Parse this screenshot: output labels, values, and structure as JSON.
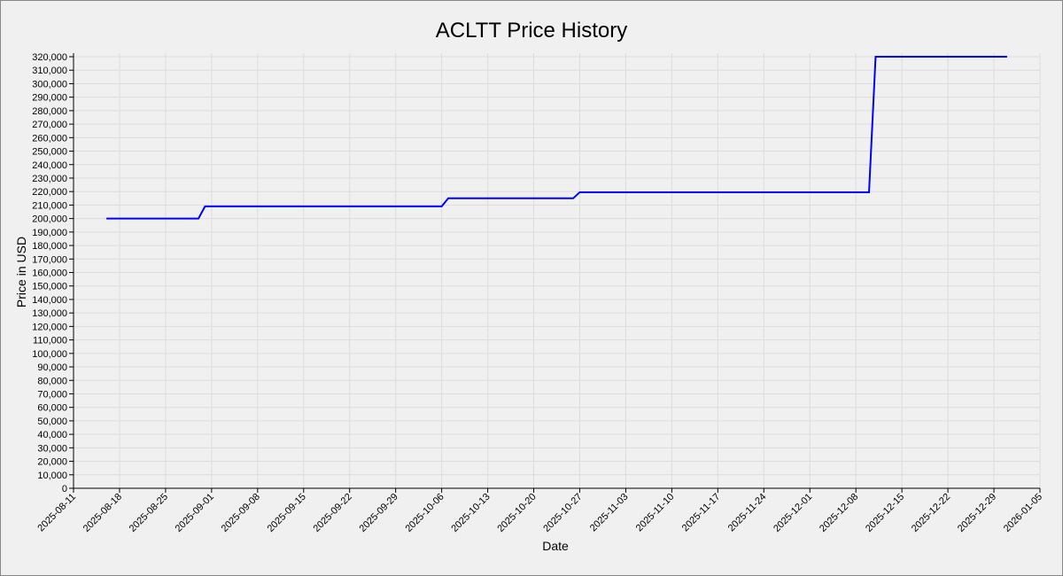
{
  "chart_data": {
    "type": "line",
    "title": "ACLTT Price History",
    "x_label": "Date",
    "y_label": "Price in USD",
    "x": [
      "2025-08-16",
      "2025-08-30",
      "2025-08-31",
      "2025-10-06",
      "2025-10-07",
      "2025-10-26",
      "2025-10-27",
      "2025-12-10",
      "2025-12-11",
      "2025-12-31"
    ],
    "values": [
      200000,
      200000,
      209000,
      209000,
      215000,
      215000,
      219500,
      219500,
      320000,
      320000
    ],
    "color": "#0000ff",
    "grid": true,
    "xlim": [
      "2025-08-11",
      "2026-01-05"
    ],
    "xticks": [
      "2025-08-11",
      "2025-08-18",
      "2025-08-25",
      "2025-09-01",
      "2025-09-08",
      "2025-09-15",
      "2025-09-22",
      "2025-09-29",
      "2025-10-06",
      "2025-10-13",
      "2025-10-20",
      "2025-10-27",
      "2025-11-03",
      "2025-11-10",
      "2025-11-17",
      "2025-11-24",
      "2025-12-01",
      "2025-12-08",
      "2025-12-15",
      "2025-12-22",
      "2025-12-29",
      "2026-01-05"
    ],
    "ylim": [
      0,
      320000
    ],
    "yticks": [
      0,
      {
        "value": 10000,
        "label": "10,000"
      },
      {
        "value": 20000,
        "label": "20,000"
      },
      {
        "value": 30000,
        "label": "30,000"
      },
      {
        "value": 40000,
        "label": "40,000"
      },
      {
        "value": 50000,
        "label": "50,000"
      },
      {
        "value": 60000,
        "label": "60,000"
      },
      {
        "value": 70000,
        "label": "70,000"
      },
      {
        "value": 80000,
        "label": "80,000"
      },
      {
        "value": 90000,
        "label": "90,000"
      },
      {
        "value": 100000,
        "label": "100,000"
      },
      {
        "value": 110000,
        "label": "110,000"
      },
      {
        "value": 120000,
        "label": "120,000"
      },
      {
        "value": 130000,
        "label": "130,000"
      },
      {
        "value": 140000,
        "label": "140,000"
      },
      {
        "value": 150000,
        "label": "150,000"
      },
      {
        "value": 160000,
        "label": "160,000"
      },
      {
        "value": 170000,
        "label": "170,000"
      },
      {
        "value": 180000,
        "label": "180,000"
      },
      {
        "value": 190000,
        "label": "190,000"
      },
      {
        "value": 200000,
        "label": "200,000"
      },
      {
        "value": 210000,
        "label": "210,000"
      },
      {
        "value": 220000,
        "label": "220,000"
      },
      {
        "value": 230000,
        "label": "230,000"
      },
      {
        "value": 240000,
        "label": "240,000"
      },
      {
        "value": 250000,
        "label": "250,000"
      },
      {
        "value": 260000,
        "label": "260,000"
      },
      {
        "value": 270000,
        "label": "270,000"
      },
      {
        "value": 280000,
        "label": "280,000"
      },
      {
        "value": 290000,
        "label": "290,000"
      },
      {
        "value": 300000,
        "label": "300,000"
      },
      {
        "value": 310000,
        "label": "310,000"
      },
      {
        "value": 320000,
        "label": "320,000"
      }
    ]
  }
}
